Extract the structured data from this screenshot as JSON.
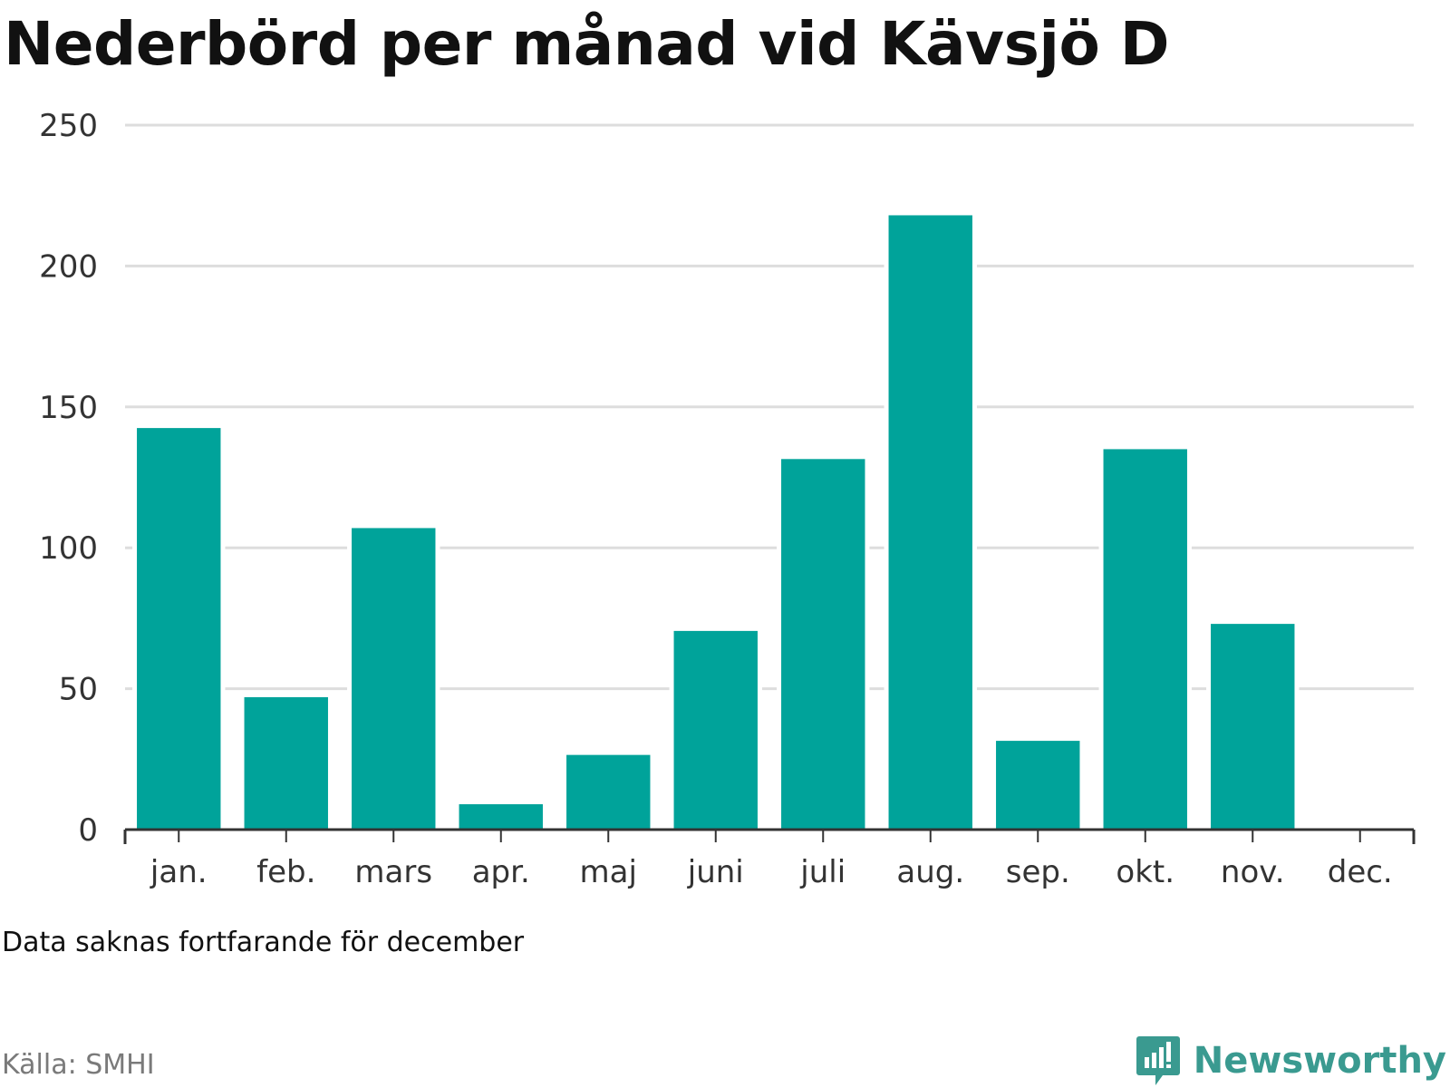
{
  "title": "Nederbörd per månad vid Kävsjö D",
  "note": "Data saknas fortfarande för december",
  "source": "Källa: SMHI",
  "brand": {
    "name": "Newsworthy",
    "icon": "newsworthy-logo-icon",
    "color": "#3a9a90"
  },
  "colors": {
    "bar": "#00a39a",
    "grid": "#dddddd",
    "axis": "#333333"
  },
  "chart_data": {
    "type": "bar",
    "title": "Nederbörd per månad vid Kävsjö D",
    "xlabel": "",
    "ylabel": "",
    "categories": [
      "jan.",
      "feb.",
      "mars",
      "apr.",
      "maj",
      "juni",
      "juli",
      "aug.",
      "sep.",
      "okt.",
      "nov.",
      "dec."
    ],
    "values": [
      142.5,
      47,
      107,
      9,
      26.5,
      70.5,
      131.5,
      218,
      31.5,
      135,
      73,
      null
    ],
    "ylim": [
      0,
      250
    ],
    "yticks": [
      0,
      50,
      100,
      150,
      200,
      250
    ],
    "grid": true,
    "legend": "none"
  }
}
